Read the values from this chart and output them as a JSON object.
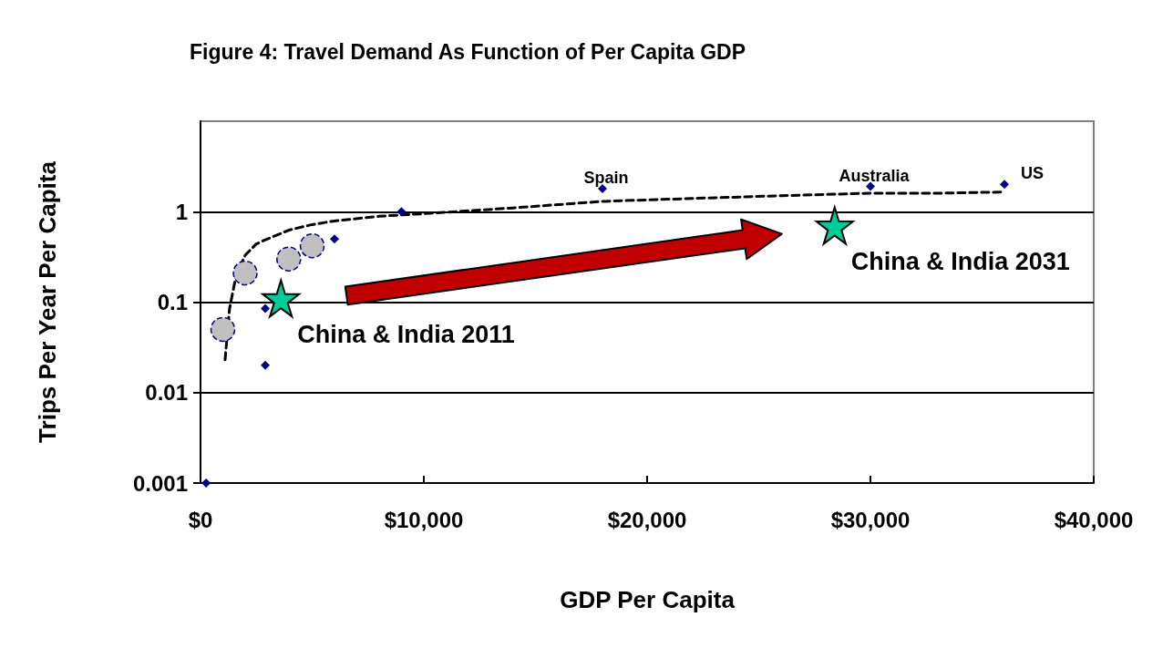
{
  "chart_data": {
    "type": "scatter",
    "title": "Figure 4: Travel Demand As Function of Per Capita GDP",
    "xlabel": "GDP Per Capita",
    "ylabel": "Trips Per Year Per Capita",
    "log": "y",
    "grid": "y",
    "xlim": [
      0,
      40000
    ],
    "xticks": [
      {
        "value": 0,
        "label": "$0"
      },
      {
        "value": 10000,
        "label": "$10,000"
      },
      {
        "value": 20000,
        "label": "$20,000"
      },
      {
        "value": 30000,
        "label": "$30,000"
      },
      {
        "value": 40000,
        "label": "$40,000"
      }
    ],
    "ylim": [
      0.001,
      10
    ],
    "yticks": [
      0.001,
      0.01,
      0.1,
      1
    ],
    "series": [
      {
        "type": "line",
        "line_style": "dashed",
        "marker": "none",
        "color": "#000000",
        "x": [
          1100,
          1300,
          1600,
          2000,
          2500,
          3000,
          4000,
          5000,
          6000,
          8000,
          10000,
          14000,
          18000,
          22000,
          26000,
          30000,
          33000,
          36000
        ],
        "values": [
          0.023,
          0.085,
          0.2,
          0.33,
          0.44,
          0.5,
          0.63,
          0.72,
          0.79,
          0.89,
          0.95,
          1.1,
          1.3,
          1.4,
          1.5,
          1.6,
          1.6,
          1.65
        ]
      },
      {
        "marker": "diamond",
        "color": "#000080",
        "x": [
          250,
          2900,
          2900,
          6000,
          9000,
          18000,
          30000,
          36000
        ],
        "values": [
          0.001,
          0.02,
          0.085,
          0.5,
          1,
          1.8,
          1.9,
          2
        ]
      },
      {
        "marker": "circle",
        "color": "#c0c0c0",
        "x": [
          1000,
          2000,
          3950,
          5000
        ],
        "values": [
          0.05,
          0.21,
          0.3,
          0.42
        ]
      },
      {
        "marker": "star",
        "color": "#00cc99",
        "x": [
          3600,
          28400
        ],
        "values": [
          0.11,
          0.7
        ]
      }
    ],
    "annotations": [
      {
        "text": "Spain",
        "x": 18000,
        "y": 1.8
      },
      {
        "text": "Australia",
        "x": 30000,
        "y": 1.9
      },
      {
        "text": "US",
        "x": 36000,
        "y": 2
      },
      {
        "text": "China & India 2011",
        "x": 3600,
        "y": 0.11
      },
      {
        "text": "China & India 2031",
        "x": 28400,
        "y": 0.7
      }
    ]
  }
}
